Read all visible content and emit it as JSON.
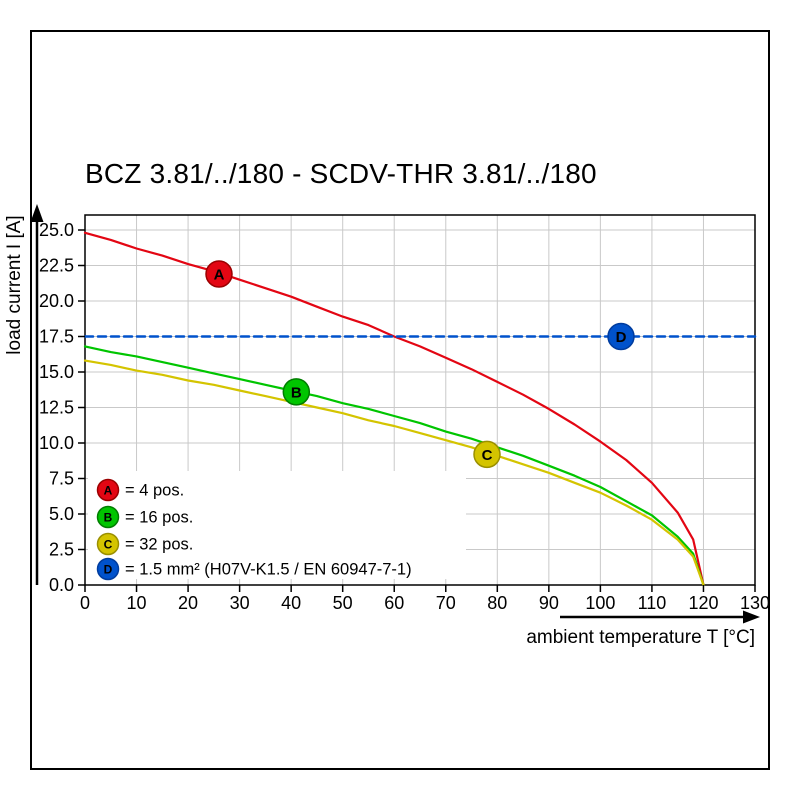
{
  "title": "BCZ 3.81/../180 - SCDV-THR 3.81/../180",
  "chart_data": {
    "type": "line",
    "title": "BCZ 3.81/../180 - SCDV-THR 3.81/../180",
    "xlabel": "ambient temperature T [°C]",
    "ylabel": "load current I [A]",
    "xlim": [
      0,
      130
    ],
    "ylim": [
      0,
      25
    ],
    "x_ticks": [
      0,
      10,
      20,
      30,
      40,
      50,
      60,
      70,
      80,
      90,
      100,
      110,
      120,
      130
    ],
    "y_ticks": [
      0,
      2.5,
      5,
      7.5,
      10,
      12.5,
      15,
      17.5,
      20,
      22.5,
      25
    ],
    "grid": true,
    "grid_color": "#c9c9c9",
    "legend_position": "bottom-left",
    "series": [
      {
        "name": "A",
        "label": "= 4 pos.",
        "color": "#e30613",
        "edge": "#9b0000",
        "style": "solid",
        "marker": {
          "x": 26,
          "y": 21.9
        },
        "points": [
          [
            0,
            24.8
          ],
          [
            5,
            24.3
          ],
          [
            10,
            23.7
          ],
          [
            15,
            23.2
          ],
          [
            20,
            22.6
          ],
          [
            25,
            22.1
          ],
          [
            30,
            21.5
          ],
          [
            35,
            20.9
          ],
          [
            40,
            20.3
          ],
          [
            45,
            19.6
          ],
          [
            50,
            18.9
          ],
          [
            55,
            18.3
          ],
          [
            60,
            17.5
          ],
          [
            65,
            16.8
          ],
          [
            70,
            16.0
          ],
          [
            75,
            15.2
          ],
          [
            80,
            14.3
          ],
          [
            85,
            13.4
          ],
          [
            90,
            12.4
          ],
          [
            95,
            11.3
          ],
          [
            100,
            10.1
          ],
          [
            105,
            8.8
          ],
          [
            110,
            7.2
          ],
          [
            115,
            5.1
          ],
          [
            118,
            3.2
          ],
          [
            120,
            0
          ]
        ]
      },
      {
        "name": "B",
        "label": "= 16 pos.",
        "color": "#00c500",
        "edge": "#007d00",
        "style": "solid",
        "marker": {
          "x": 41,
          "y": 13.6
        },
        "points": [
          [
            0,
            16.8
          ],
          [
            5,
            16.4
          ],
          [
            10,
            16.1
          ],
          [
            15,
            15.7
          ],
          [
            20,
            15.3
          ],
          [
            25,
            14.9
          ],
          [
            30,
            14.5
          ],
          [
            35,
            14.1
          ],
          [
            40,
            13.7
          ],
          [
            45,
            13.3
          ],
          [
            50,
            12.8
          ],
          [
            55,
            12.4
          ],
          [
            60,
            11.9
          ],
          [
            65,
            11.4
          ],
          [
            70,
            10.8
          ],
          [
            75,
            10.3
          ],
          [
            80,
            9.7
          ],
          [
            85,
            9.1
          ],
          [
            90,
            8.4
          ],
          [
            95,
            7.7
          ],
          [
            100,
            6.9
          ],
          [
            105,
            5.9
          ],
          [
            110,
            4.9
          ],
          [
            115,
            3.4
          ],
          [
            118,
            2.2
          ],
          [
            120,
            0
          ]
        ]
      },
      {
        "name": "C",
        "label": "= 32 pos.",
        "color": "#d4c400",
        "edge": "#9a8f00",
        "style": "solid",
        "marker": {
          "x": 78,
          "y": 9.2
        },
        "points": [
          [
            0,
            15.8
          ],
          [
            5,
            15.5
          ],
          [
            10,
            15.1
          ],
          [
            15,
            14.8
          ],
          [
            20,
            14.4
          ],
          [
            25,
            14.1
          ],
          [
            30,
            13.7
          ],
          [
            35,
            13.3
          ],
          [
            40,
            12.9
          ],
          [
            45,
            12.5
          ],
          [
            50,
            12.1
          ],
          [
            55,
            11.6
          ],
          [
            60,
            11.2
          ],
          [
            65,
            10.7
          ],
          [
            70,
            10.2
          ],
          [
            75,
            9.7
          ],
          [
            80,
            9.1
          ],
          [
            85,
            8.5
          ],
          [
            90,
            7.9
          ],
          [
            95,
            7.2
          ],
          [
            100,
            6.5
          ],
          [
            105,
            5.6
          ],
          [
            110,
            4.6
          ],
          [
            115,
            3.2
          ],
          [
            118,
            2.0
          ],
          [
            120,
            0
          ]
        ]
      },
      {
        "name": "D",
        "label": "= 1.5 mm² (H07V-K1.5 / EN 60947-7-1)",
        "color": "#0052cc",
        "edge": "#003c9e",
        "style": "dashed",
        "marker": {
          "x": 104,
          "y": 17.5
        },
        "points": [
          [
            0,
            17.5
          ],
          [
            130,
            17.5
          ]
        ]
      }
    ]
  }
}
